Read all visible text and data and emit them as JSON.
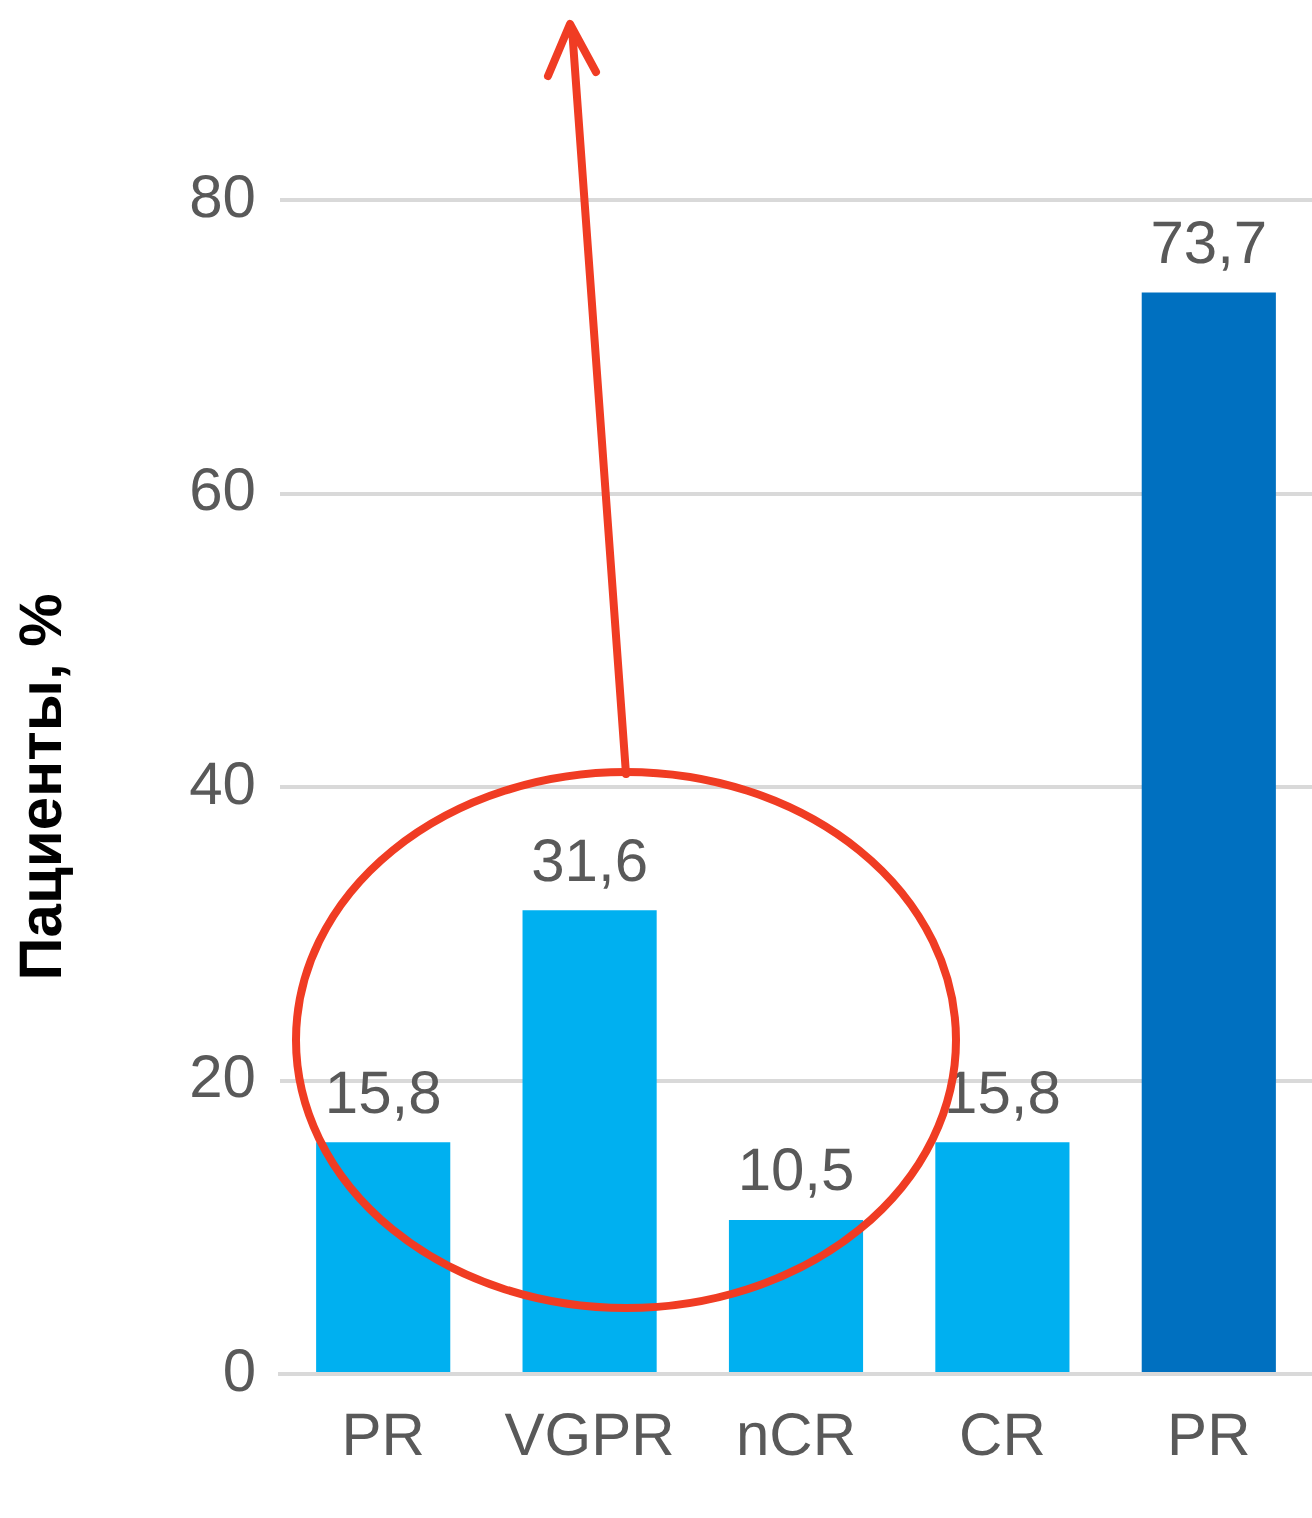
{
  "chart_data": {
    "type": "bar",
    "ylabel": "Пациенты, %",
    "categories": [
      "PR",
      "VGPR",
      "nCR",
      "CR",
      "PR"
    ],
    "values": [
      15.8,
      31.6,
      10.5,
      15.8,
      73.7
    ],
    "colors": [
      "#00b0f0",
      "#00b0f0",
      "#00b0f0",
      "#00b0f0",
      "#0070c0"
    ],
    "value_labels": [
      "15,8",
      "31,6",
      "10,5",
      "15,8",
      "73,7"
    ],
    "ylim": [
      0,
      80
    ],
    "yticks": [
      0,
      20,
      40,
      60,
      80
    ],
    "grid": "y",
    "legend": false
  }
}
